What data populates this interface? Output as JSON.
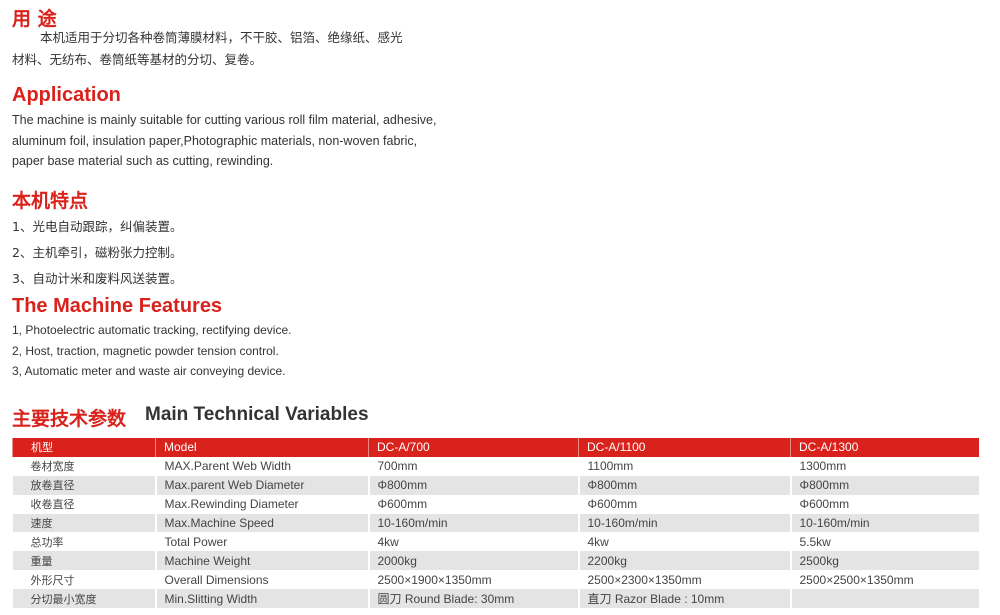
{
  "usage": {
    "title": "用 途",
    "text_line1": "本机适用于分切各种卷筒薄膜材料，不干胶、铝箔、绝缘纸、感光",
    "text_line2": "材料、无纺布、卷筒纸等基材的分切、复卷。"
  },
  "application": {
    "title": "Application",
    "lines": [
      "The machine is mainly suitable for cutting various roll film material, adhesive,",
      "aluminum foil, insulation paper,Photographic materials, non-woven fabric,",
      "paper base material such as cutting, rewinding."
    ]
  },
  "features_cn": {
    "title": "本机特点",
    "items": [
      "1、光电自动跟踪，纠偏装置。",
      "2、主机牵引，磁粉张力控制。",
      "3、自动计米和废料风送装置。"
    ]
  },
  "features_en": {
    "title": "The Machine Features",
    "items": [
      "1, Photoelectric automatic tracking, rectifying device.",
      "2, Host, traction, magnetic powder tension control.",
      "3, Automatic meter and waste air conveying device."
    ]
  },
  "specs": {
    "title_cn": "主要技术参数",
    "title_en": "Main Technical Variables",
    "header": [
      "机型",
      "Model",
      "DC-A/700",
      "DC-A/1100",
      "DC-A/1300"
    ],
    "rows": [
      [
        "卷材宽度",
        "MAX.Parent Web Width",
        "700mm",
        "1100mm",
        "1300mm"
      ],
      [
        "放卷直径",
        "Max.parent Web Diameter",
        "Φ800mm",
        "Φ800mm",
        "Φ800mm"
      ],
      [
        "收卷直径",
        "Max.Rewinding Diameter",
        "Φ600mm",
        "Φ600mm",
        "Φ600mm"
      ],
      [
        "速度",
        "Max.Machine Speed",
        "10-160m/min",
        "10-160m/min",
        "10-160m/min"
      ],
      [
        "总功率",
        "Total Power",
        "4kw",
        "4kw",
        "5.5kw"
      ],
      [
        "重量",
        "Machine Weight",
        "2000kg",
        "2200kg",
        "2500kg"
      ],
      [
        "外形尺寸",
        "Overall Dimensions",
        "2500×1900×1350mm",
        "2500×2300×1350mm",
        "2500×2500×1350mm"
      ],
      [
        "分切最小宽度",
        "Min.Slitting Width",
        "圆刀 Round Blade: 30mm",
        "直刀 Razor Blade : 10mm",
        ""
      ]
    ]
  },
  "colors": {
    "accent": "#d9221c",
    "row_alt": "#e4e4e4"
  }
}
